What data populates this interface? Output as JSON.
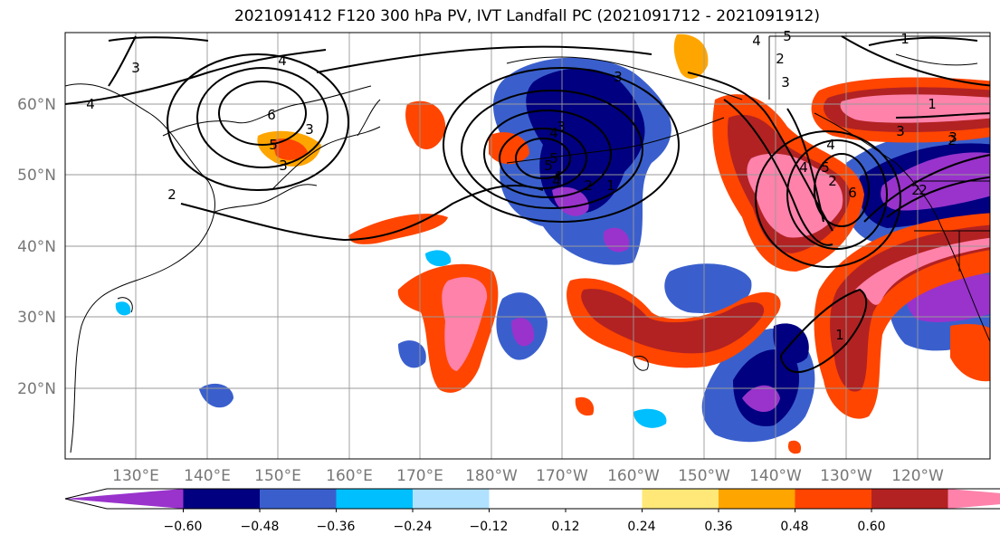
{
  "title": "2021091412 F120 300 hPa PV, IVT Landfall PC (2021091712 - 2021091912)",
  "lat_labels": [
    "20°N",
    "30°N",
    "40°N",
    "50°N",
    "60°N"
  ],
  "lon_labels": [
    "130°E",
    "140°E",
    "150°E",
    "160°E",
    "170°E",
    "180°W",
    "170°W",
    "160°W",
    "150°W",
    "140°W",
    "130°W",
    "120°W"
  ],
  "colorbar": {
    "colors": [
      "#9933cc",
      "#000080",
      "#3a5fcd",
      "#00bfff",
      "#b0e2ff",
      "#ffffff",
      "#ffffff",
      "#ffe878",
      "#ffa500",
      "#ff4500",
      "#b22222",
      "#ff82ab"
    ],
    "tick_labels": [
      "−0.60",
      "−0.48",
      "−0.36",
      "−0.24",
      "−0.12",
      "0.12",
      "0.24",
      "0.36",
      "0.48",
      "0.60"
    ]
  },
  "contour_labels": [
    "4",
    "3",
    "4",
    "6",
    "5",
    "3",
    "3",
    "2",
    "4",
    "5",
    "1",
    "4",
    "3",
    "3",
    "5",
    "4",
    "2",
    "1",
    "2",
    "2",
    "3",
    "4",
    "5",
    "6",
    "2",
    "3",
    "4",
    "2",
    "1",
    "1",
    "2",
    "3",
    "4",
    "5"
  ]
}
